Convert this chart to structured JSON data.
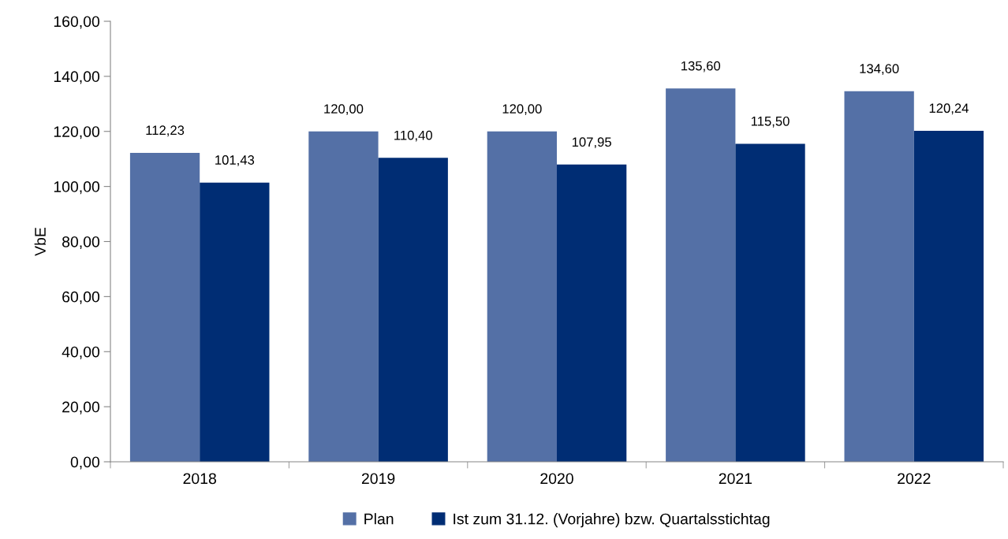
{
  "chart_data": {
    "type": "bar",
    "ylabel": "VbE",
    "categories": [
      "2018",
      "2019",
      "2020",
      "2021",
      "2022"
    ],
    "series": [
      {
        "name": "Plan",
        "color": "#5470a6",
        "values": [
          112.23,
          120.0,
          120.0,
          135.6,
          134.6
        ],
        "value_labels": [
          "112,23",
          "120,00",
          "120,00",
          "135,60",
          "134,60"
        ]
      },
      {
        "name": "Ist zum 31.12. (Vorjahre) bzw. Quartalsstichtag",
        "color": "#002d74",
        "values": [
          101.43,
          110.4,
          107.95,
          115.5,
          120.24
        ],
        "value_labels": [
          "101,43",
          "110,40",
          "107,95",
          "115,50",
          "120,24"
        ]
      }
    ],
    "ylim": [
      0,
      160
    ],
    "yticks": [
      {
        "value": 0,
        "label": "0,00"
      },
      {
        "value": 20,
        "label": "20,00"
      },
      {
        "value": 40,
        "label": "40,00"
      },
      {
        "value": 60,
        "label": "60,00"
      },
      {
        "value": 80,
        "label": "80,00"
      },
      {
        "value": 100,
        "label": "100,00"
      },
      {
        "value": 120,
        "label": "120,00"
      },
      {
        "value": 140,
        "label": "140,00"
      },
      {
        "value": 160,
        "label": "160,00"
      }
    ],
    "grid": false,
    "legend": "bottom"
  }
}
